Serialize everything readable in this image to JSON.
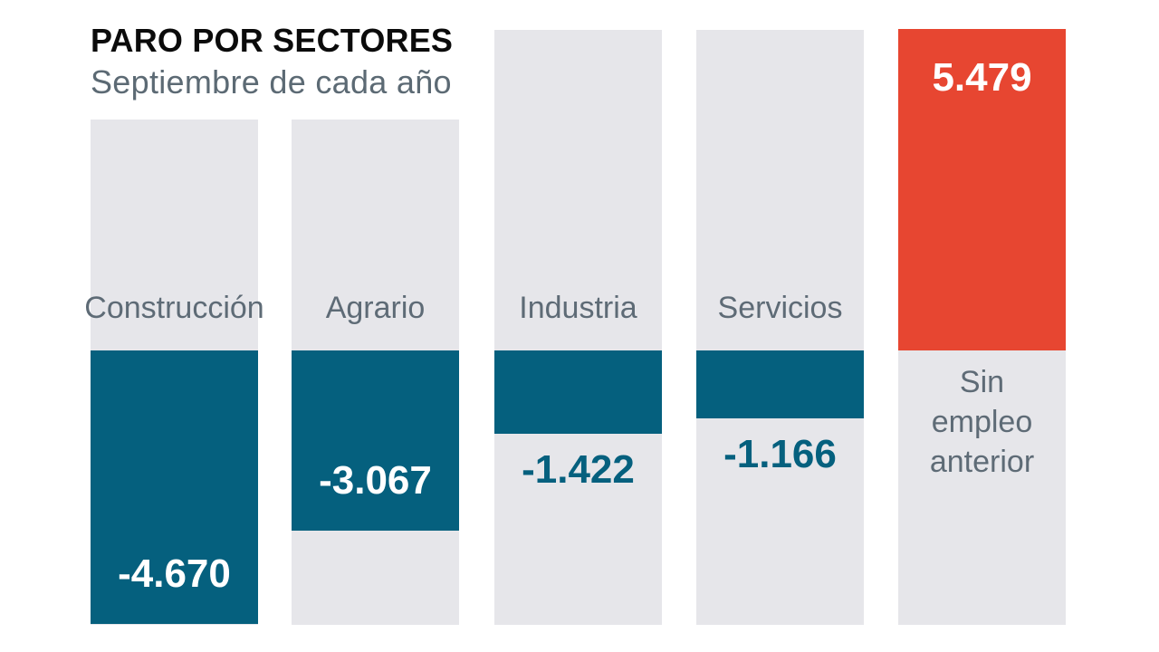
{
  "header": {
    "title": "PARO POR SECTORES",
    "subtitle": "Septiembre de cada año"
  },
  "chart_data": {
    "type": "bar",
    "title": "PARO POR SECTORES",
    "subtitle": "Septiembre de cada año",
    "orientation": "vertical",
    "grid": false,
    "legend": "none",
    "axes_visible": false,
    "baseline_value": 0,
    "categories": [
      "Construcción",
      "Agrario",
      "Industria",
      "Servicios",
      "Sin empleo anterior"
    ],
    "values": [
      -4670,
      -3067,
      -1422,
      -1166,
      5479
    ],
    "bars": [
      {
        "label": "Construcción",
        "value": -4670,
        "value_label": "-4.670",
        "bar_color_role": "negative",
        "value_label_position": "inside",
        "track": "short"
      },
      {
        "label": "Agrario",
        "value": -3067,
        "value_label": "-3.067",
        "bar_color_role": "negative",
        "value_label_position": "inside",
        "track": "short"
      },
      {
        "label": "Industria",
        "value": -1422,
        "value_label": "-1.422",
        "bar_color_role": "negative",
        "value_label_position": "below",
        "track": "tall"
      },
      {
        "label": "Servicios",
        "value": -1166,
        "value_label": "-1.166",
        "bar_color_role": "negative",
        "value_label_position": "below",
        "track": "tall"
      },
      {
        "label": "Sin empleo anterior",
        "value": 5479,
        "value_label": "5.479",
        "bar_color_role": "positive",
        "value_label_position": "inside",
        "track": "tall"
      }
    ],
    "colors": {
      "negative_bar": "#05607e",
      "positive_bar": "#e74631",
      "column_track": "#e6e6ea",
      "category_label_text": "#5e6b76",
      "value_inside_text": "#ffffff",
      "title_text": "#0b0b0b",
      "subtitle_text": "#5c6a74",
      "background": "#ffffff"
    }
  }
}
